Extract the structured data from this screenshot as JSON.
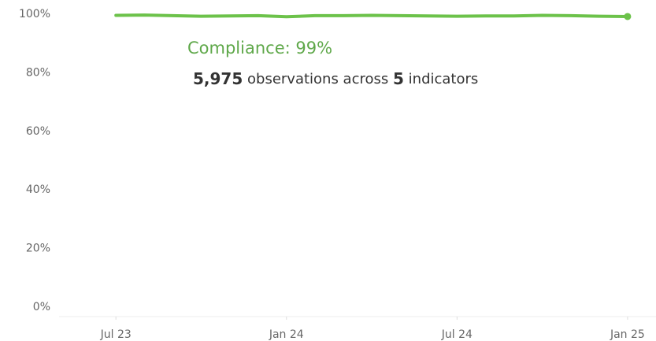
{
  "chart_data": {
    "type": "line",
    "x": [
      "2023-07",
      "2023-08",
      "2023-09",
      "2023-10",
      "2023-11",
      "2023-12",
      "2024-01",
      "2024-02",
      "2024-03",
      "2024-04",
      "2024-05",
      "2024-06",
      "2024-07",
      "2024-08",
      "2024-09",
      "2024-10",
      "2024-11",
      "2024-12",
      "2025-01"
    ],
    "series": [
      {
        "name": "Compliance",
        "color": "#6cc24a",
        "values": [
          99.6,
          99.7,
          99.5,
          99.3,
          99.4,
          99.5,
          99.1,
          99.5,
          99.5,
          99.6,
          99.5,
          99.4,
          99.3,
          99.4,
          99.4,
          99.6,
          99.5,
          99.3,
          99.2
        ]
      }
    ],
    "xlim": [
      "2023-05",
      "2025-02"
    ],
    "xticks": [
      {
        "value": "2023-07",
        "label": "Jul 23"
      },
      {
        "value": "2024-01",
        "label": "Jan 24"
      },
      {
        "value": "2024-07",
        "label": "Jul 24"
      },
      {
        "value": "2025-01",
        "label": "Jan 25"
      }
    ],
    "ylim": [
      0,
      100
    ],
    "yticks": [
      {
        "value": 0,
        "label": "0%"
      },
      {
        "value": 20,
        "label": "20%"
      },
      {
        "value": 40,
        "label": "40%"
      },
      {
        "value": 60,
        "label": "60%"
      },
      {
        "value": 80,
        "label": "80%"
      },
      {
        "value": 100,
        "label": "100%"
      }
    ],
    "grid": false,
    "annotation": {
      "title": "Compliance: 99%",
      "count": "5,975",
      "middle": "observations across",
      "indicators": "5",
      "tail": "indicators",
      "title_color": "#5fa84a"
    }
  }
}
